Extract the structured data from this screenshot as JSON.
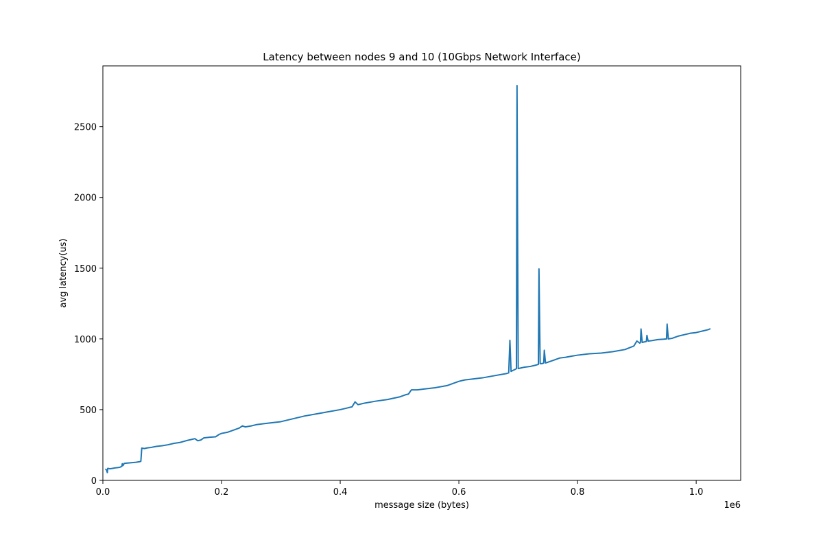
{
  "chart_data": {
    "type": "line",
    "title": "Latency between nodes 9 and 10 (10Gbps Network Interface)",
    "xlabel": "message size (bytes)",
    "ylabel": "avg latency(us)",
    "x_offset_label": "1e6",
    "xlim": [
      0,
      1075000
    ],
    "ylim": [
      0,
      2930
    ],
    "x_ticks": [
      0,
      200000,
      400000,
      600000,
      800000,
      1000000
    ],
    "x_tick_labels": [
      "0.0",
      "0.2",
      "0.4",
      "0.6",
      "0.8",
      "1.0"
    ],
    "y_ticks": [
      0,
      500,
      1000,
      1500,
      2000,
      2500
    ],
    "y_tick_labels": [
      "0",
      "500",
      "1000",
      "1500",
      "2000",
      "2500"
    ],
    "grid": false,
    "color": "#1f77b4",
    "series": [
      {
        "name": "",
        "points": [
          [
            4096,
            80
          ],
          [
            6000,
            75
          ],
          [
            7500,
            55
          ],
          [
            8192,
            85
          ],
          [
            12000,
            82
          ],
          [
            16384,
            85
          ],
          [
            20000,
            88
          ],
          [
            24000,
            90
          ],
          [
            28000,
            92
          ],
          [
            30000,
            95
          ],
          [
            32000,
            100
          ],
          [
            32768,
            118
          ],
          [
            34000,
            105
          ],
          [
            36000,
            120
          ],
          [
            40000,
            122
          ],
          [
            48000,
            125
          ],
          [
            56000,
            128
          ],
          [
            62000,
            132
          ],
          [
            64000,
            135
          ],
          [
            65536,
            228
          ],
          [
            70000,
            225
          ],
          [
            75000,
            230
          ],
          [
            80000,
            232
          ],
          [
            90000,
            240
          ],
          [
            100000,
            245
          ],
          [
            110000,
            252
          ],
          [
            120000,
            262
          ],
          [
            130000,
            268
          ],
          [
            140000,
            280
          ],
          [
            150000,
            290
          ],
          [
            155000,
            295
          ],
          [
            160000,
            280
          ],
          [
            165000,
            285
          ],
          [
            170000,
            300
          ],
          [
            180000,
            305
          ],
          [
            190000,
            308
          ],
          [
            196000,
            325
          ],
          [
            200000,
            332
          ],
          [
            210000,
            340
          ],
          [
            220000,
            355
          ],
          [
            230000,
            370
          ],
          [
            235000,
            385
          ],
          [
            240000,
            378
          ],
          [
            250000,
            385
          ],
          [
            260000,
            395
          ],
          [
            270000,
            400
          ],
          [
            280000,
            405
          ],
          [
            300000,
            415
          ],
          [
            320000,
            435
          ],
          [
            340000,
            455
          ],
          [
            360000,
            470
          ],
          [
            380000,
            485
          ],
          [
            400000,
            500
          ],
          [
            420000,
            520
          ],
          [
            425000,
            555
          ],
          [
            430000,
            535
          ],
          [
            440000,
            545
          ],
          [
            460000,
            560
          ],
          [
            480000,
            572
          ],
          [
            500000,
            590
          ],
          [
            510000,
            605
          ],
          [
            515000,
            610
          ],
          [
            520000,
            640
          ],
          [
            530000,
            640
          ],
          [
            540000,
            645
          ],
          [
            560000,
            655
          ],
          [
            580000,
            670
          ],
          [
            600000,
            700
          ],
          [
            610000,
            710
          ],
          [
            620000,
            715
          ],
          [
            640000,
            725
          ],
          [
            660000,
            740
          ],
          [
            680000,
            755
          ],
          [
            684000,
            760
          ],
          [
            686000,
            990
          ],
          [
            688000,
            770
          ],
          [
            690000,
            775
          ],
          [
            695000,
            785
          ],
          [
            697000,
            790
          ],
          [
            698000,
            2790
          ],
          [
            700000,
            790
          ],
          [
            705000,
            795
          ],
          [
            710000,
            800
          ],
          [
            720000,
            805
          ],
          [
            730000,
            815
          ],
          [
            734000,
            820
          ],
          [
            735000,
            1495
          ],
          [
            737000,
            825
          ],
          [
            740000,
            825
          ],
          [
            743000,
            830
          ],
          [
            744000,
            920
          ],
          [
            746000,
            830
          ],
          [
            750000,
            835
          ],
          [
            760000,
            850
          ],
          [
            770000,
            865
          ],
          [
            780000,
            870
          ],
          [
            790000,
            878
          ],
          [
            800000,
            885
          ],
          [
            820000,
            895
          ],
          [
            840000,
            900
          ],
          [
            860000,
            910
          ],
          [
            880000,
            925
          ],
          [
            895000,
            950
          ],
          [
            900000,
            985
          ],
          [
            905000,
            970
          ],
          [
            906000,
            975
          ],
          [
            907000,
            1070
          ],
          [
            909000,
            975
          ],
          [
            912000,
            978
          ],
          [
            916000,
            982
          ],
          [
            917000,
            1025
          ],
          [
            919000,
            985
          ],
          [
            925000,
            988
          ],
          [
            935000,
            995
          ],
          [
            945000,
            998
          ],
          [
            950000,
            1000
          ],
          [
            951000,
            1105
          ],
          [
            953000,
            1000
          ],
          [
            960000,
            1005
          ],
          [
            970000,
            1020
          ],
          [
            980000,
            1030
          ],
          [
            990000,
            1040
          ],
          [
            1000000,
            1045
          ],
          [
            1010000,
            1055
          ],
          [
            1020000,
            1065
          ],
          [
            1024000,
            1072
          ]
        ]
      }
    ]
  }
}
